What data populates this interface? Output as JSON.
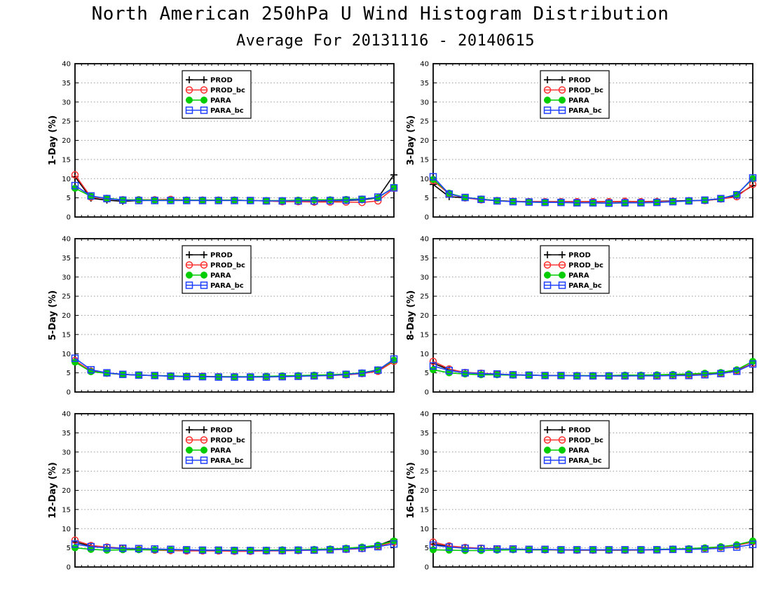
{
  "title": "North American 250hPa U Wind Histogram Distribution",
  "subtitle": "Average For 20131116 - 20140615",
  "colors": {
    "PROD": "#000000",
    "PROD_bc": "#ff3030",
    "PARA": "#00cc00",
    "PARA_bc": "#2040ff"
  },
  "chart_data": [
    {
      "type": "line",
      "ylabel": "1-Day (%)",
      "ylim": [
        0,
        40
      ],
      "yticks": [
        "0",
        "5",
        "10",
        "15",
        "20",
        "25",
        "30",
        "35",
        "40"
      ],
      "grid": true,
      "legend": "top-center",
      "x": [
        1,
        2,
        3,
        4,
        5,
        6,
        7,
        8,
        9,
        10,
        11,
        12,
        13,
        14,
        15,
        16,
        17,
        18,
        19,
        20,
        21
      ],
      "series": [
        {
          "name": "PROD",
          "marker": "plus",
          "values": [
            10.5,
            4.9,
            4.4,
            4.1,
            4.3,
            4.4,
            4.5,
            4.4,
            4.4,
            4.4,
            4.4,
            4.3,
            4.2,
            4.2,
            4.1,
            4.1,
            4.2,
            4.3,
            4.5,
            5.0,
            11.0
          ]
        },
        {
          "name": "PROD_bc",
          "marker": "circle",
          "values": [
            11.0,
            5.2,
            4.8,
            4.5,
            4.5,
            4.5,
            4.6,
            4.4,
            4.4,
            4.4,
            4.4,
            4.3,
            4.2,
            4.0,
            4.0,
            3.9,
            3.9,
            3.9,
            3.8,
            4.2,
            7.5
          ]
        },
        {
          "name": "PARA",
          "marker": "filled-circle",
          "values": [
            7.5,
            5.4,
            4.9,
            4.5,
            4.5,
            4.4,
            4.4,
            4.4,
            4.4,
            4.4,
            4.4,
            4.3,
            4.3,
            4.3,
            4.4,
            4.5,
            4.5,
            4.6,
            4.7,
            5.0,
            7.8
          ]
        },
        {
          "name": "PARA_bc",
          "marker": "square",
          "values": [
            8.2,
            5.5,
            4.8,
            4.4,
            4.3,
            4.3,
            4.3,
            4.3,
            4.3,
            4.3,
            4.3,
            4.3,
            4.2,
            4.2,
            4.2,
            4.2,
            4.3,
            4.4,
            4.6,
            5.2,
            7.6
          ]
        }
      ]
    },
    {
      "type": "line",
      "ylabel": "3-Day (%)",
      "ylim": [
        0,
        40
      ],
      "yticks": [
        "0",
        "5",
        "10",
        "15",
        "20",
        "25",
        "30",
        "35",
        "40"
      ],
      "grid": true,
      "legend": "top-center",
      "x": [
        1,
        2,
        3,
        4,
        5,
        6,
        7,
        8,
        9,
        10,
        11,
        12,
        13,
        14,
        15,
        16,
        17,
        18,
        19,
        20,
        21
      ],
      "series": [
        {
          "name": "PROD",
          "marker": "plus",
          "values": [
            8.5,
            5.3,
            5.0,
            4.6,
            4.3,
            4.1,
            4.0,
            4.0,
            4.0,
            4.0,
            4.0,
            4.0,
            4.0,
            4.0,
            4.1,
            4.2,
            4.3,
            4.3,
            4.7,
            5.6,
            8.2
          ]
        },
        {
          "name": "PROD_bc",
          "marker": "circle",
          "values": [
            9.5,
            6.0,
            5.0,
            4.5,
            4.3,
            4.1,
            4.0,
            4.0,
            4.0,
            4.0,
            4.0,
            4.0,
            4.1,
            4.0,
            4.0,
            4.1,
            4.2,
            4.3,
            4.7,
            5.3,
            8.5
          ]
        },
        {
          "name": "PARA",
          "marker": "filled-circle",
          "values": [
            9.8,
            6.2,
            5.1,
            4.7,
            4.3,
            4.0,
            3.9,
            3.8,
            3.8,
            3.7,
            3.7,
            3.6,
            3.7,
            3.7,
            3.8,
            4.0,
            4.2,
            4.4,
            4.8,
            5.9,
            10.0
          ]
        },
        {
          "name": "PARA_bc",
          "marker": "square",
          "values": [
            10.5,
            6.0,
            5.1,
            4.6,
            4.2,
            4.0,
            3.9,
            3.8,
            3.8,
            3.7,
            3.7,
            3.6,
            3.7,
            3.7,
            3.8,
            4.0,
            4.2,
            4.4,
            4.8,
            5.8,
            10.2
          ]
        }
      ]
    },
    {
      "type": "line",
      "ylabel": "5-Day (%)",
      "ylim": [
        0,
        40
      ],
      "yticks": [
        "0",
        "5",
        "10",
        "15",
        "20",
        "25",
        "30",
        "35",
        "40"
      ],
      "grid": true,
      "legend": "top-center",
      "x": [
        1,
        2,
        3,
        4,
        5,
        6,
        7,
        8,
        9,
        10,
        11,
        12,
        13,
        14,
        15,
        16,
        17,
        18,
        19,
        20,
        21
      ],
      "series": [
        {
          "name": "PROD",
          "marker": "plus",
          "values": [
            8.0,
            5.5,
            4.9,
            4.6,
            4.4,
            4.3,
            4.2,
            4.1,
            4.0,
            4.0,
            3.9,
            3.9,
            4.0,
            4.1,
            4.2,
            4.3,
            4.4,
            4.6,
            4.9,
            5.5,
            8.0
          ]
        },
        {
          "name": "PROD_bc",
          "marker": "circle",
          "values": [
            8.2,
            5.4,
            4.9,
            4.6,
            4.4,
            4.3,
            4.2,
            4.1,
            4.1,
            4.0,
            4.0,
            3.9,
            4.0,
            4.0,
            4.1,
            4.2,
            4.3,
            4.5,
            4.8,
            5.4,
            8.0
          ]
        },
        {
          "name": "PARA",
          "marker": "filled-circle",
          "values": [
            7.8,
            5.3,
            4.9,
            4.6,
            4.4,
            4.3,
            4.2,
            4.1,
            4.0,
            4.0,
            4.0,
            4.0,
            4.1,
            4.2,
            4.3,
            4.4,
            4.5,
            4.7,
            5.0,
            5.8,
            8.3
          ]
        },
        {
          "name": "PARA_bc",
          "marker": "square",
          "values": [
            8.8,
            5.8,
            5.0,
            4.6,
            4.4,
            4.3,
            4.1,
            4.0,
            4.0,
            3.9,
            3.9,
            3.9,
            3.9,
            4.0,
            4.1,
            4.2,
            4.3,
            4.6,
            4.9,
            5.7,
            8.6
          ]
        }
      ]
    },
    {
      "type": "line",
      "ylabel": "8-Day (%)",
      "ylim": [
        0,
        40
      ],
      "yticks": [
        "0",
        "5",
        "10",
        "15",
        "20",
        "25",
        "30",
        "35",
        "40"
      ],
      "grid": true,
      "legend": "top-center",
      "x": [
        1,
        2,
        3,
        4,
        5,
        6,
        7,
        8,
        9,
        10,
        11,
        12,
        13,
        14,
        15,
        16,
        17,
        18,
        19,
        20,
        21
      ],
      "series": [
        {
          "name": "PROD",
          "marker": "plus",
          "values": [
            7.5,
            5.8,
            5.1,
            4.8,
            4.6,
            4.5,
            4.4,
            4.3,
            4.3,
            4.3,
            4.2,
            4.2,
            4.2,
            4.3,
            4.3,
            4.4,
            4.5,
            4.7,
            5.0,
            5.6,
            7.5
          ]
        },
        {
          "name": "PROD_bc",
          "marker": "circle",
          "values": [
            8.0,
            6.0,
            5.1,
            4.9,
            4.7,
            4.5,
            4.4,
            4.3,
            4.3,
            4.3,
            4.2,
            4.2,
            4.2,
            4.3,
            4.3,
            4.3,
            4.4,
            4.6,
            4.9,
            5.5,
            7.5
          ]
        },
        {
          "name": "PARA",
          "marker": "filled-circle",
          "values": [
            5.8,
            5.0,
            4.7,
            4.5,
            4.5,
            4.4,
            4.4,
            4.3,
            4.3,
            4.3,
            4.3,
            4.3,
            4.4,
            4.4,
            4.5,
            4.6,
            4.7,
            4.9,
            5.1,
            5.8,
            8.0
          ]
        },
        {
          "name": "PARA_bc",
          "marker": "square",
          "values": [
            6.8,
            5.6,
            5.0,
            4.8,
            4.7,
            4.5,
            4.4,
            4.3,
            4.3,
            4.2,
            4.2,
            4.2,
            4.2,
            4.2,
            4.2,
            4.3,
            4.3,
            4.5,
            4.8,
            5.4,
            7.3
          ]
        }
      ]
    },
    {
      "type": "line",
      "ylabel": "12-Day (%)",
      "ylim": [
        0,
        40
      ],
      "yticks": [
        "0",
        "5",
        "10",
        "15",
        "20",
        "25",
        "30",
        "35",
        "40"
      ],
      "grid": true,
      "legend": "top-center",
      "x": [
        1,
        2,
        3,
        4,
        5,
        6,
        7,
        8,
        9,
        10,
        11,
        12,
        13,
        14,
        15,
        16,
        17,
        18,
        19,
        20,
        21
      ],
      "series": [
        {
          "name": "PROD",
          "marker": "plus",
          "values": [
            6.5,
            5.5,
            5.0,
            4.8,
            4.6,
            4.5,
            4.4,
            4.3,
            4.3,
            4.2,
            4.2,
            4.2,
            4.3,
            4.3,
            4.4,
            4.5,
            4.6,
            4.8,
            5.1,
            5.6,
            7.2
          ]
        },
        {
          "name": "PROD_bc",
          "marker": "circle",
          "values": [
            7.0,
            5.6,
            5.2,
            4.9,
            4.6,
            4.4,
            4.3,
            4.2,
            4.2,
            4.2,
            4.1,
            4.1,
            4.2,
            4.2,
            4.3,
            4.4,
            4.5,
            4.6,
            4.8,
            5.4,
            6.5
          ]
        },
        {
          "name": "PARA",
          "marker": "filled-circle",
          "values": [
            5.0,
            4.6,
            4.4,
            4.5,
            4.5,
            4.5,
            4.5,
            4.5,
            4.4,
            4.4,
            4.4,
            4.4,
            4.4,
            4.5,
            4.5,
            4.6,
            4.7,
            4.9,
            5.2,
            5.7,
            6.8
          ]
        },
        {
          "name": "PARA_bc",
          "marker": "square",
          "values": [
            6.0,
            5.3,
            5.0,
            4.9,
            4.8,
            4.7,
            4.6,
            4.5,
            4.4,
            4.4,
            4.3,
            4.3,
            4.3,
            4.3,
            4.4,
            4.4,
            4.5,
            4.7,
            4.9,
            5.3,
            6.0
          ]
        }
      ]
    },
    {
      "type": "line",
      "ylabel": "16-Day (%)",
      "ylim": [
        0,
        40
      ],
      "yticks": [
        "0",
        "5",
        "10",
        "15",
        "20",
        "25",
        "30",
        "35",
        "40"
      ],
      "grid": true,
      "legend": "top-center",
      "x": [
        1,
        2,
        3,
        4,
        5,
        6,
        7,
        8,
        9,
        10,
        11,
        12,
        13,
        14,
        15,
        16,
        17,
        18,
        19,
        20,
        21
      ],
      "series": [
        {
          "name": "PROD",
          "marker": "plus",
          "values": [
            6.0,
            5.3,
            5.0,
            4.8,
            4.7,
            4.6,
            4.5,
            4.5,
            4.5,
            4.4,
            4.4,
            4.4,
            4.4,
            4.5,
            4.5,
            4.6,
            4.7,
            4.9,
            5.2,
            5.7,
            6.5
          ]
        },
        {
          "name": "PROD_bc",
          "marker": "circle",
          "values": [
            6.5,
            5.5,
            5.1,
            4.9,
            4.7,
            4.6,
            4.5,
            4.5,
            4.4,
            4.4,
            4.4,
            4.4,
            4.4,
            4.4,
            4.5,
            4.6,
            4.7,
            4.9,
            5.2,
            5.6,
            6.6
          ]
        },
        {
          "name": "PARA",
          "marker": "filled-circle",
          "values": [
            4.5,
            4.4,
            4.3,
            4.3,
            4.4,
            4.5,
            4.5,
            4.5,
            4.5,
            4.5,
            4.5,
            4.5,
            4.5,
            4.5,
            4.6,
            4.7,
            4.8,
            5.0,
            5.3,
            5.8,
            6.8
          ]
        },
        {
          "name": "PARA_bc",
          "marker": "square",
          "values": [
            5.7,
            5.2,
            4.9,
            4.8,
            4.7,
            4.7,
            4.6,
            4.6,
            4.5,
            4.5,
            4.5,
            4.5,
            4.5,
            4.5,
            4.5,
            4.6,
            4.6,
            4.7,
            4.9,
            5.2,
            5.9
          ]
        }
      ]
    }
  ]
}
